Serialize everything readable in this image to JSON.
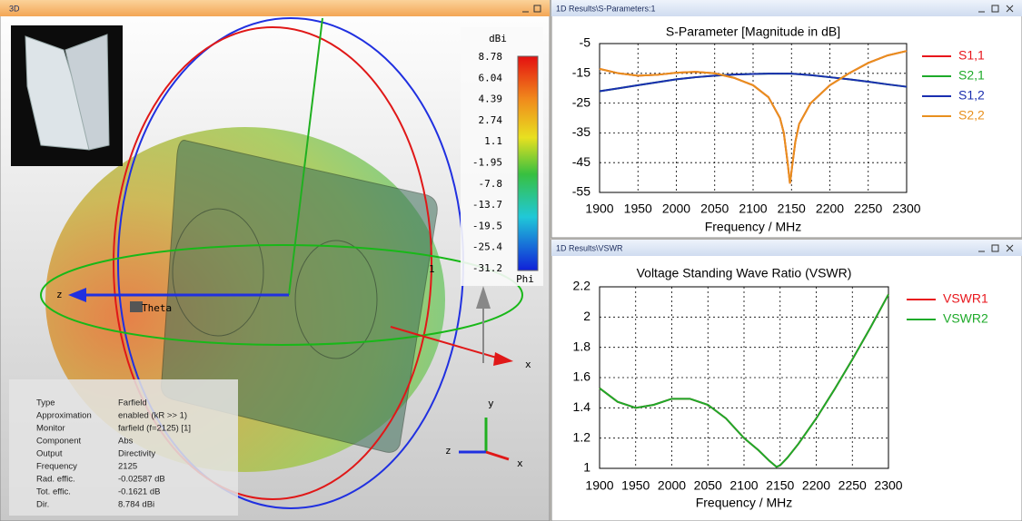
{
  "windows": {
    "view_3d": "3D",
    "s_parameters": "1D Results\\S-Parameters:1",
    "vswr": "1D Results\\VSWR"
  },
  "view_3d": {
    "colorbar_unit": "dBi",
    "colorbar_labels": [
      "8.78",
      "6.04",
      "4.39",
      "2.74",
      "1.1",
      "-1.95",
      "-7.8",
      "-13.7",
      "-19.5",
      "-25.4",
      "-31.2"
    ],
    "colorbar_footer": "Phi",
    "axis_labels": [
      "z",
      "x",
      "1",
      "Theta",
      "y",
      "z",
      "x"
    ],
    "info": [
      [
        "Type",
        "Farfield"
      ],
      [
        "Approximation",
        "enabled (kR >> 1)"
      ],
      [
        "Monitor",
        "farfield (f=2125) [1]"
      ],
      [
        "Component",
        "Abs"
      ],
      [
        "Output",
        "Directivity"
      ],
      [
        "Frequency",
        "2125"
      ],
      [
        "Rad. effic.",
        "-0.02587 dB"
      ],
      [
        "Tot. effic.",
        "-0.1621 dB"
      ],
      [
        "Dir.",
        "8.784 dBi"
      ]
    ]
  },
  "chart_data": [
    {
      "type": "line",
      "title": "S-Parameter [Magnitude in dB]",
      "xlabel": "Frequency / MHz",
      "x": [
        1900,
        1925,
        1950,
        1975,
        2000,
        2025,
        2050,
        2075,
        2100,
        2120,
        2135,
        2140,
        2145,
        2148,
        2150,
        2155,
        2160,
        2175,
        2200,
        2225,
        2250,
        2275,
        2300
      ],
      "xlim": [
        1900,
        2300
      ],
      "xticks": [
        1900,
        1950,
        2000,
        2050,
        2100,
        2150,
        2200,
        2250,
        2300
      ],
      "ylim": [
        -55,
        -5
      ],
      "yticks": [
        -55,
        -45,
        -35,
        -25,
        -15,
        -5
      ],
      "grid": true,
      "legend": "right",
      "series": [
        {
          "name": "S1,1",
          "color": "#e8161c",
          "values": [
            -13.5,
            -15,
            -15.8,
            -15.5,
            -14.8,
            -14.5,
            -15,
            -16.5,
            -19,
            -23,
            -30,
            -35,
            -45,
            -52,
            -48,
            -38,
            -32,
            -25,
            -19,
            -15,
            -11.5,
            -9,
            -7.5
          ]
        },
        {
          "name": "S2,1",
          "color": "#1eaa2a",
          "values": [
            -21,
            -20,
            -19,
            -18,
            -17,
            -16.3,
            -15.8,
            -15.4,
            -15.2,
            -15.1,
            -15.1,
            -15.1,
            -15.1,
            -15.1,
            -15.1,
            -15.2,
            -15.3,
            -15.6,
            -16.3,
            -17,
            -17.8,
            -18.7,
            -19.5
          ]
        },
        {
          "name": "S1,2",
          "color": "#1a2fb0",
          "values": [
            -21,
            -20,
            -19,
            -18,
            -17,
            -16.3,
            -15.8,
            -15.4,
            -15.2,
            -15.1,
            -15.1,
            -15.1,
            -15.1,
            -15.1,
            -15.1,
            -15.2,
            -15.3,
            -15.6,
            -16.3,
            -17,
            -17.8,
            -18.7,
            -19.5
          ]
        },
        {
          "name": "S2,2",
          "color": "#e8901e",
          "values": [
            -13.5,
            -15,
            -15.8,
            -15.5,
            -14.8,
            -14.5,
            -15,
            -16.5,
            -19,
            -23,
            -30,
            -35,
            -45,
            -52,
            -48,
            -38,
            -32,
            -25,
            -19,
            -15,
            -11.5,
            -9,
            -7.5
          ]
        }
      ]
    },
    {
      "type": "line",
      "title": "Voltage Standing Wave Ratio (VSWR)",
      "xlabel": "Frequency / MHz",
      "x": [
        1900,
        1925,
        1950,
        1975,
        2000,
        2025,
        2050,
        2075,
        2100,
        2120,
        2135,
        2145,
        2150,
        2160,
        2175,
        2200,
        2225,
        2250,
        2275,
        2300
      ],
      "xlim": [
        1900,
        2300
      ],
      "xticks": [
        1900,
        1950,
        2000,
        2050,
        2100,
        2150,
        2200,
        2250,
        2300
      ],
      "ylim": [
        1,
        2.2
      ],
      "yticks": [
        1,
        1.2,
        1.4,
        1.6,
        1.8,
        2,
        2.2
      ],
      "grid": true,
      "legend": "right",
      "series": [
        {
          "name": "VSWR1",
          "color": "#e8161c",
          "values": [
            1.53,
            1.44,
            1.4,
            1.42,
            1.46,
            1.46,
            1.42,
            1.33,
            1.2,
            1.12,
            1.05,
            1.01,
            1.02,
            1.07,
            1.16,
            1.33,
            1.52,
            1.72,
            1.93,
            2.15
          ]
        },
        {
          "name": "VSWR2",
          "color": "#1eaa2a",
          "values": [
            1.53,
            1.44,
            1.4,
            1.42,
            1.46,
            1.46,
            1.42,
            1.33,
            1.2,
            1.12,
            1.05,
            1.01,
            1.02,
            1.07,
            1.16,
            1.33,
            1.52,
            1.72,
            1.93,
            2.15
          ]
        }
      ]
    }
  ]
}
